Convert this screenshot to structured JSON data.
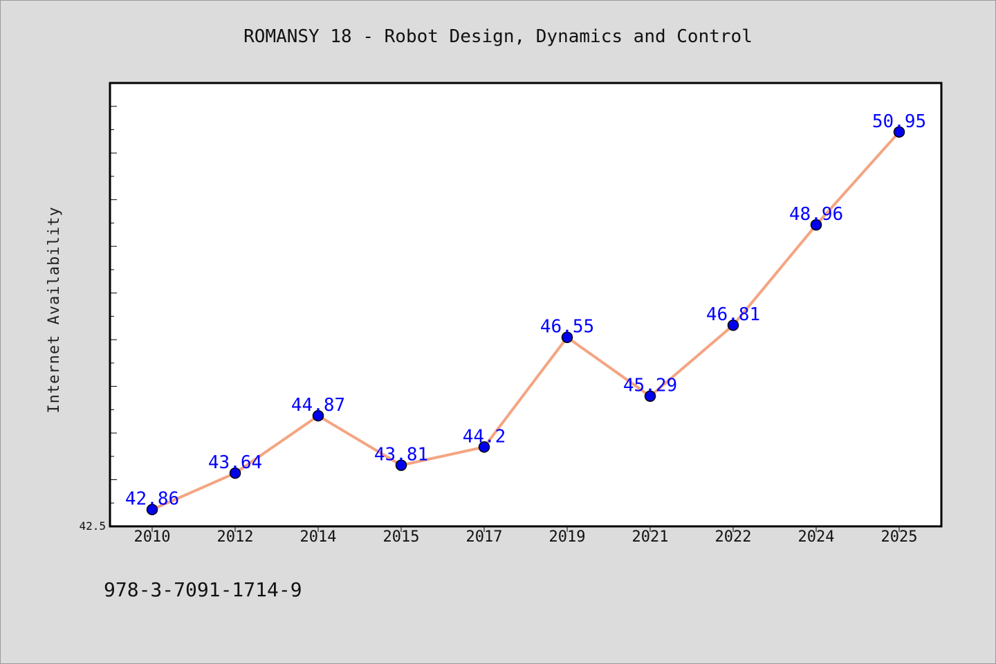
{
  "chart_data": {
    "type": "line",
    "title": "ROMANSY 18 - Robot Design, Dynamics and Control",
    "xlabel": "",
    "ylabel": "Internet Availability",
    "categories": [
      "2010",
      "2012",
      "2014",
      "2015",
      "2017",
      "2019",
      "2021",
      "2022",
      "2024",
      "2025"
    ],
    "series": [
      {
        "values": [
          42.86,
          43.64,
          44.87,
          43.81,
          44.2,
          46.55,
          45.29,
          46.81,
          48.96,
          50.95
        ],
        "line_color": "#f4a582",
        "marker_color": "#0000ee"
      }
    ],
    "y_tick_labels": [
      "42.5"
    ],
    "ylim": [
      42.5,
      52.0
    ],
    "grid": false,
    "legend": "none",
    "data_labels": true,
    "label_color": "#0000ff"
  },
  "footer": {
    "isbn": "978-3-7091-1714-9"
  }
}
